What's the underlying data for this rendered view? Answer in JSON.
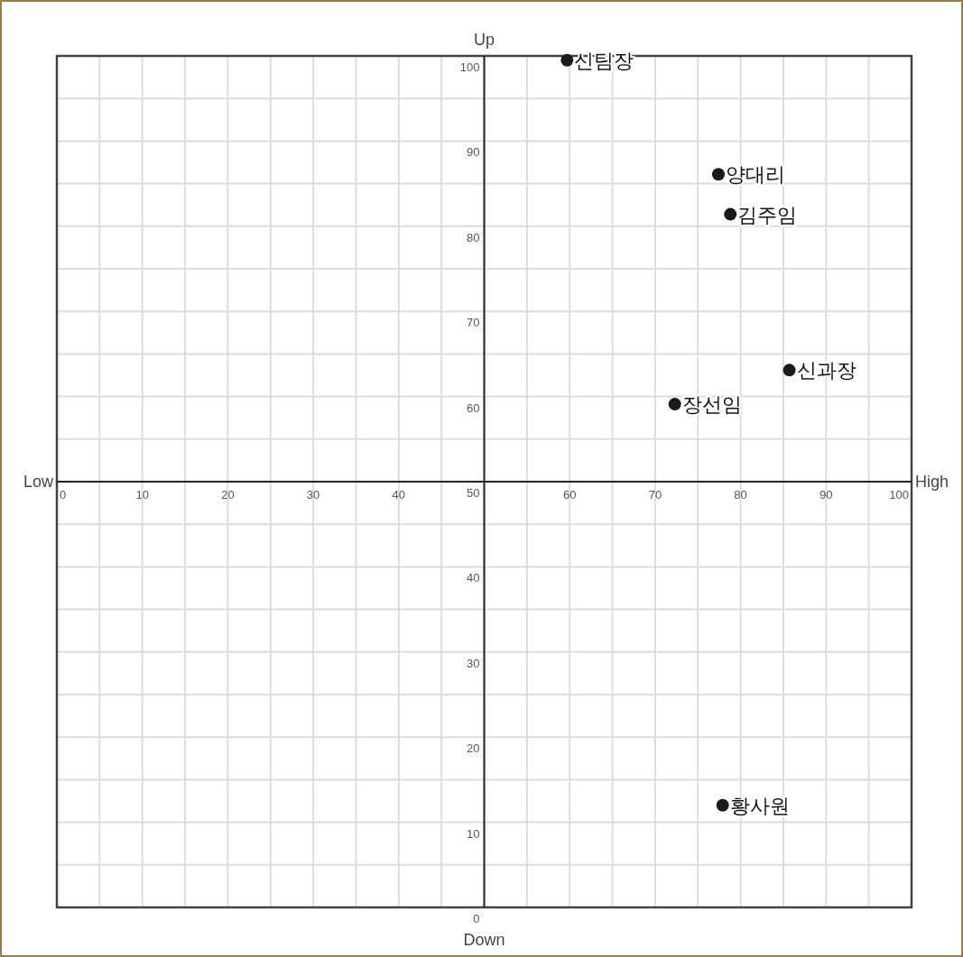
{
  "chart_data": {
    "type": "scatter",
    "xlabel": "Low",
    "y2label": "High",
    "ylabel": "Up",
    "x2label": "Down",
    "xlim": [
      0,
      100
    ],
    "ylim": [
      0,
      100
    ],
    "xticks": [
      0,
      {
        "value": 5,
        "label": null
      },
      10,
      {
        "value": 15,
        "label": null
      },
      20,
      {
        "value": 25,
        "label": null
      },
      30,
      {
        "value": 35,
        "label": null
      },
      40,
      {
        "value": 45,
        "label": null
      },
      {
        "value": 50,
        "label": null
      },
      {
        "value": 55,
        "label": null
      },
      60,
      {
        "value": 65,
        "label": null
      },
      70,
      {
        "value": 75,
        "label": null
      },
      80,
      {
        "value": 85,
        "label": null
      },
      90,
      {
        "value": 95,
        "label": null
      },
      100
    ],
    "yticks": [
      0,
      {
        "value": 5,
        "label": null
      },
      10,
      {
        "value": 15,
        "label": null
      },
      20,
      {
        "value": 25,
        "label": null
      },
      30,
      {
        "value": 35,
        "label": null
      },
      40,
      {
        "value": 45,
        "label": null
      },
      50,
      {
        "value": 55,
        "label": null
      },
      60,
      {
        "value": 65,
        "label": null
      },
      70,
      {
        "value": 75,
        "label": null
      },
      80,
      {
        "value": 85,
        "label": null
      },
      90,
      {
        "value": 95,
        "label": null
      },
      100
    ],
    "grid": true,
    "marker": "circle",
    "series": [
      {
        "name": "신팀장",
        "color": "#1a1a1a",
        "x": [
          59.7
        ],
        "values": [
          99.5
        ]
      },
      {
        "name": "양대리",
        "color": "#1a1a1a",
        "x": [
          77.4
        ],
        "values": [
          86.1
        ]
      },
      {
        "name": "김주임",
        "color": "#1a1a1a",
        "x": [
          78.8
        ],
        "values": [
          81.4
        ]
      },
      {
        "name": "신과장",
        "color": "#1a1a1a",
        "x": [
          85.7
        ],
        "values": [
          63.1
        ]
      },
      {
        "name": "장선임",
        "color": "#1a1a1a",
        "x": [
          72.3
        ],
        "values": [
          59.1
        ]
      },
      {
        "name": "황사원",
        "color": "#1a1a1a",
        "x": [
          77.9
        ],
        "values": [
          12.0
        ]
      }
    ]
  }
}
